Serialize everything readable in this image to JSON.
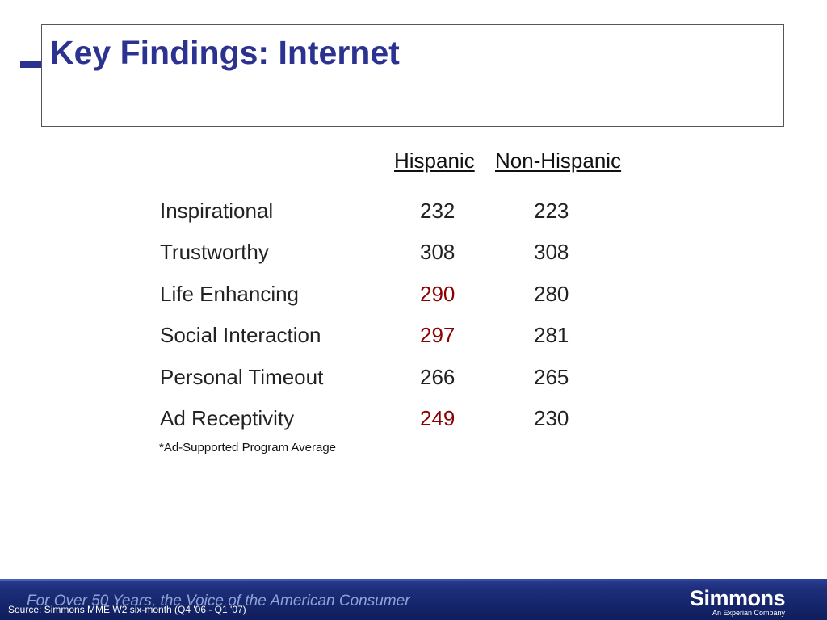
{
  "title": "Key Findings: Internet",
  "columns": {
    "hispanic": "Hispanic",
    "non_hispanic": "Non-Hispanic"
  },
  "rows": [
    {
      "label": "Inspirational",
      "hispanic": "232",
      "non_hispanic": "223",
      "highlight": false
    },
    {
      "label": "Trustworthy",
      "hispanic": "308",
      "non_hispanic": "308",
      "highlight": false
    },
    {
      "label": "Life Enhancing",
      "hispanic": "290",
      "non_hispanic": "280",
      "highlight": true
    },
    {
      "label": "Social Interaction",
      "hispanic": "297",
      "non_hispanic": "281",
      "highlight": true
    },
    {
      "label": "Personal Timeout",
      "hispanic": "266",
      "non_hispanic": "265",
      "highlight": false
    },
    {
      "label": "Ad Receptivity",
      "hispanic": "249",
      "non_hispanic": "230",
      "highlight": true
    }
  ],
  "footnote": "*Ad-Supported Program Average",
  "footer": {
    "tagline": "For Over 50 Years, the Voice of the American Consumer",
    "source": "Source: Simmons MME W2 six-month (Q4 '06 - Q1 '07)",
    "brand_name": "Simmons",
    "brand_sub": "An Experian Company"
  },
  "colors": {
    "title": "#2b3290",
    "highlight": "#8b0000",
    "footer_bg": "#1d2e7a"
  }
}
